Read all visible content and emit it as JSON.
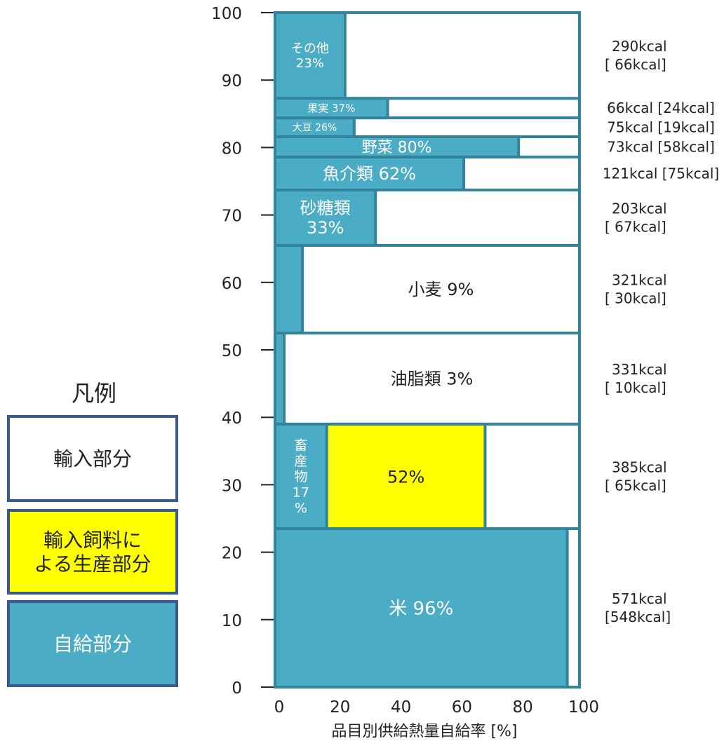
{
  "colors": {
    "self": "#4bacc6",
    "feed": "#ffff00",
    "import": "#ffffff",
    "border": "#31849b",
    "legend_border": "#3a5a8c",
    "text_dark": "#222222",
    "text_light": "#ffffff"
  },
  "legend": {
    "title": "凡例",
    "items": [
      {
        "label_lines": [
          "輸入部分"
        ],
        "color": "#ffffff"
      },
      {
        "label_lines": [
          "輸入飼料に",
          "よる生産部分"
        ],
        "color": "#ffff00"
      },
      {
        "label_lines": [
          "自給部分"
        ],
        "color": "#4bacc6"
      }
    ]
  },
  "chart_data": {
    "type": "bar",
    "xlabel": "品目別供給熱量自給率 [%]",
    "ylabel": "",
    "xlim": [
      0,
      100
    ],
    "ylim": [
      0,
      100
    ],
    "xticks": [
      "0",
      "20",
      "40",
      "60",
      "80",
      "100"
    ],
    "yticks": [
      "0",
      "10",
      "20",
      "30",
      "40",
      "50",
      "60",
      "70",
      "80",
      "90",
      "100"
    ],
    "series": [
      {
        "name": "自給部分"
      },
      {
        "name": "輸入飼料による生産部分"
      },
      {
        "name": "輸入部分"
      }
    ],
    "categories": [
      {
        "name": "米",
        "y_from": 0,
        "y_to": 23.5,
        "self_rate": 96,
        "feed_rate": 0,
        "label_lines": [
          "米 96%"
        ],
        "label_area": "self",
        "label_color": "#ffffff",
        "label_size": 26,
        "kcal_lines": [
          "571kcal",
          "[548kcal]"
        ]
      },
      {
        "name": "畜産物",
        "y_from": 23.5,
        "y_to": 39,
        "self_rate": 17,
        "feed_rate": 52,
        "label_lines": [
          "畜",
          "産",
          "物",
          "17",
          "%"
        ],
        "label_area": "self",
        "label_color": "#ffffff",
        "label_size": 19,
        "feed_label": "52%",
        "kcal_lines": [
          "385kcal",
          "[ 65kcal]"
        ]
      },
      {
        "name": "油脂類",
        "y_from": 39,
        "y_to": 52.5,
        "self_rate": 3,
        "feed_rate": 0,
        "label_lines": [
          "油脂類 3%"
        ],
        "label_area": "import",
        "label_color": "#222222",
        "label_size": 24,
        "kcal_lines": [
          "331kcal",
          "[ 10kcal]"
        ]
      },
      {
        "name": "小麦",
        "y_from": 52.5,
        "y_to": 65.5,
        "self_rate": 9,
        "feed_rate": 0,
        "label_lines": [
          "小麦 9%"
        ],
        "label_area": "import",
        "label_color": "#222222",
        "label_size": 24,
        "kcal_lines": [
          "321kcal",
          "[ 30kcal]"
        ]
      },
      {
        "name": "砂糖類",
        "y_from": 65.5,
        "y_to": 73.7,
        "self_rate": 33,
        "feed_rate": 0,
        "label_lines": [
          "砂糖類",
          "33%"
        ],
        "label_area": "self",
        "label_color": "#ffffff",
        "label_size": 24,
        "kcal_lines": [
          "203kcal",
          "[ 67kcal]"
        ]
      },
      {
        "name": "魚介類",
        "y_from": 73.7,
        "y_to": 78.6,
        "self_rate": 62,
        "feed_rate": 0,
        "label_lines": [
          "魚介類 62%"
        ],
        "label_area": "self",
        "label_color": "#ffffff",
        "label_size": 24,
        "kcal_lines": [
          "121kcal [75kcal]"
        ]
      },
      {
        "name": "野菜",
        "y_from": 78.6,
        "y_to": 81.6,
        "self_rate": 80,
        "feed_rate": 0,
        "label_lines": [
          "野菜 80%"
        ],
        "label_area": "self",
        "label_color": "#ffffff",
        "label_size": 22,
        "kcal_lines": [
          "73kcal [58kcal]"
        ]
      },
      {
        "name": "大豆",
        "y_from": 81.6,
        "y_to": 84.4,
        "self_rate": 26,
        "feed_rate": 0,
        "label_lines": [
          "大豆 26%"
        ],
        "label_area": "self",
        "label_color": "#ffffff",
        "label_size": 14,
        "kcal_lines": [
          "75kcal [19kcal]"
        ]
      },
      {
        "name": "果実",
        "y_from": 84.4,
        "y_to": 87.3,
        "self_rate": 37,
        "feed_rate": 0,
        "label_lines": [
          "果実 37%"
        ],
        "label_area": "self",
        "label_color": "#ffffff",
        "label_size": 15,
        "kcal_lines": [
          "66kcal [24kcal]"
        ]
      },
      {
        "name": "その他",
        "y_from": 87.3,
        "y_to": 100,
        "self_rate": 23,
        "feed_rate": 0,
        "label_lines": [
          "その他",
          "23%"
        ],
        "label_area": "self",
        "label_color": "#ffffff",
        "label_size": 18,
        "kcal_lines": [
          "290kcal",
          "[ 66kcal]"
        ]
      }
    ]
  }
}
